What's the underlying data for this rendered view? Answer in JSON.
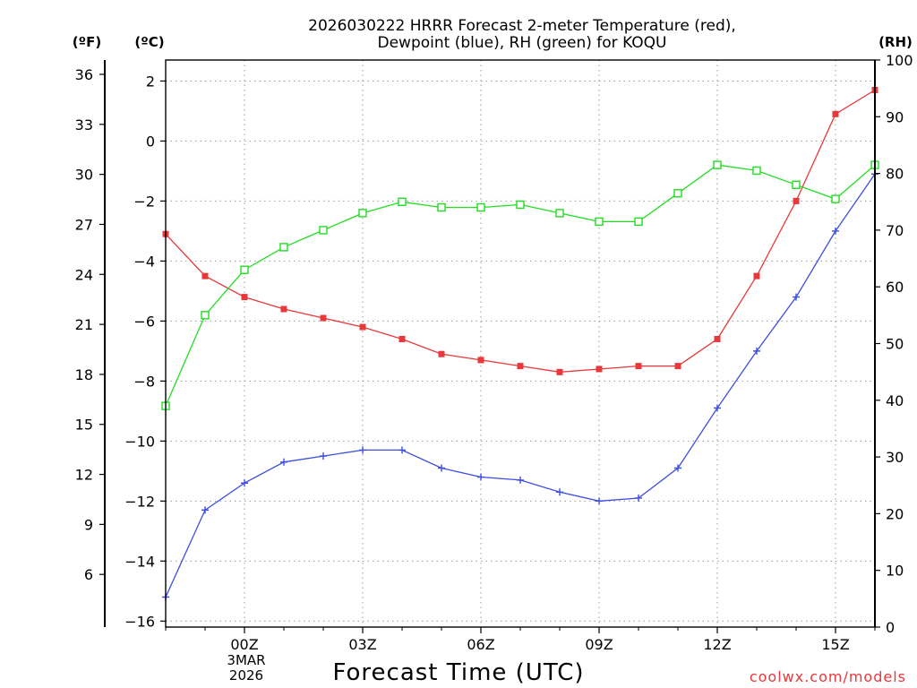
{
  "chart_data": {
    "type": "line",
    "title_lines": [
      "2026030222 HRRR Forecast 2-meter Temperature (red),",
      "Dewpoint (blue), RH (green) for KOQU"
    ],
    "xlabel": "Forecast Time (UTC)",
    "credit": "coolwx.com/models",
    "unit_labels": {
      "fahrenheit": "(ºF)",
      "celsius": "(ºC)",
      "rh": "(RH)"
    },
    "x_hours": [
      -2,
      -1,
      0,
      1,
      2,
      3,
      4,
      5,
      6,
      7,
      8,
      9,
      10,
      11,
      12,
      13,
      14,
      15,
      16
    ],
    "xlim": [
      -2,
      16
    ],
    "x_ticks": [
      {
        "hour": 0,
        "label": "00Z"
      },
      {
        "hour": 3,
        "label": "03Z"
      },
      {
        "hour": 6,
        "label": "06Z"
      },
      {
        "hour": 9,
        "label": "09Z"
      },
      {
        "hour": 12,
        "label": "12Z"
      },
      {
        "hour": 15,
        "label": "15Z"
      }
    ],
    "date_label": [
      "3MAR",
      "2026"
    ],
    "celsius_axis": {
      "ylim": [
        -16.2,
        2.7
      ],
      "ticks": [
        -16,
        -14,
        -12,
        -10,
        -8,
        -6,
        -4,
        -2,
        0,
        2
      ]
    },
    "fahrenheit_axis": {
      "ticks": [
        6,
        9,
        12,
        15,
        18,
        21,
        24,
        27,
        30,
        33,
        36
      ]
    },
    "rh_axis": {
      "ylim": [
        0,
        100
      ],
      "ticks": [
        0,
        10,
        20,
        30,
        40,
        50,
        60,
        70,
        80,
        90,
        100
      ]
    },
    "grid": true,
    "series": [
      {
        "name": "Temperature",
        "axis": "celsius",
        "color": "#e8383b",
        "marker": "filled-square",
        "values": [
          -3.1,
          -4.5,
          -5.2,
          -5.6,
          -5.9,
          -6.2,
          -6.6,
          -7.1,
          -7.3,
          -7.5,
          -7.7,
          -7.6,
          -7.5,
          -7.5,
          -6.6,
          -4.5,
          -2.0,
          0.9,
          1.7
        ]
      },
      {
        "name": "Dewpoint",
        "axis": "celsius",
        "color": "#3d4ee0",
        "marker": "plus",
        "values": [
          -15.2,
          -12.3,
          -11.4,
          -10.7,
          -10.5,
          -10.3,
          -10.3,
          -10.9,
          -11.2,
          -11.3,
          -11.7,
          -12.0,
          -11.9,
          -10.9,
          -8.9,
          -7.0,
          -5.2,
          -3.0,
          -1.1
        ]
      },
      {
        "name": "RH",
        "axis": "rh",
        "color": "#22dd22",
        "marker": "open-square",
        "values": [
          39,
          55,
          63,
          67,
          70,
          73,
          75,
          74,
          74,
          74.5,
          73,
          71.5,
          71.5,
          76.5,
          81.5,
          80.5,
          78,
          75.5,
          81.5
        ]
      }
    ]
  }
}
